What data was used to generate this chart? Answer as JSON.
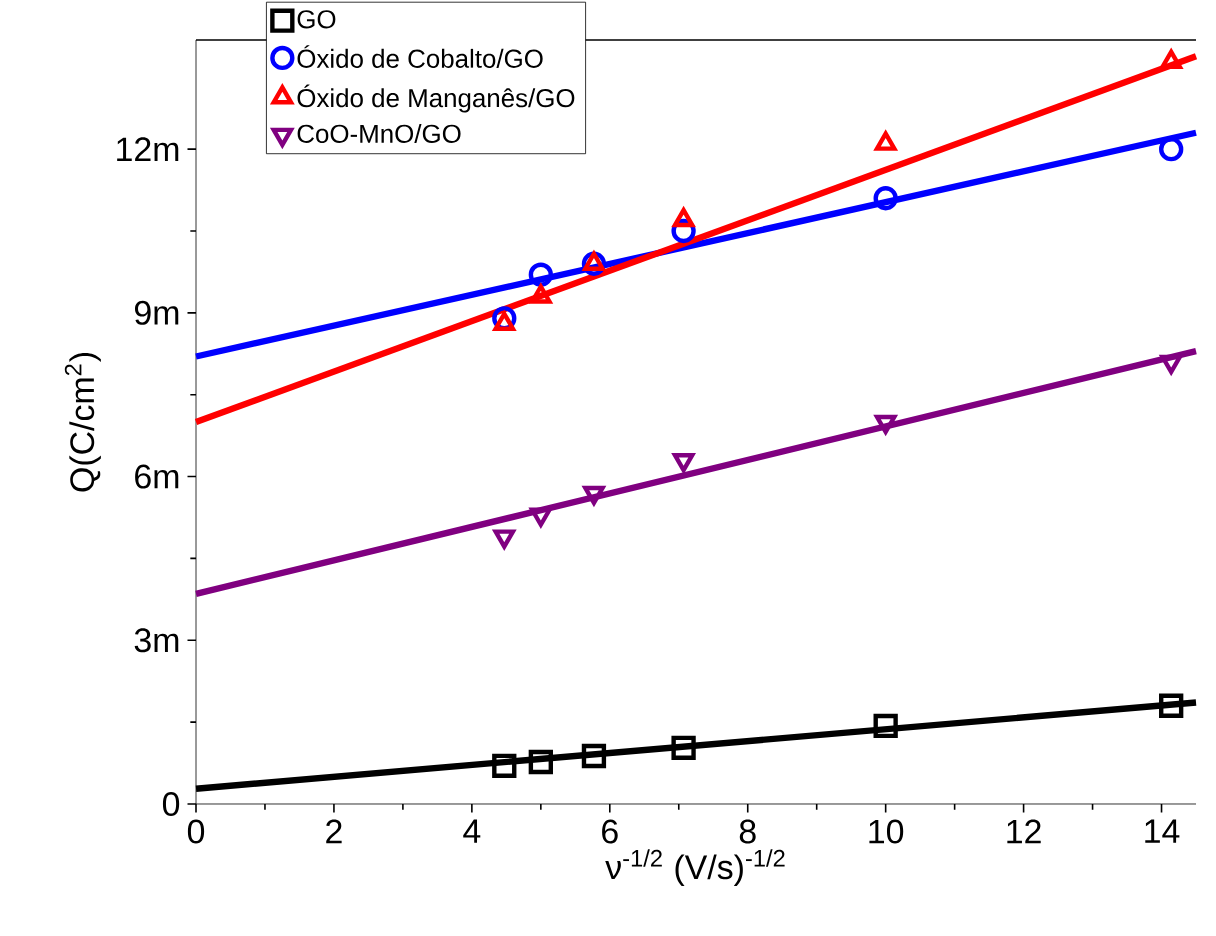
{
  "chart_data": {
    "type": "scatter",
    "xlabel": "ν$^{-1/2}$ (V/s)$^{-1/2}$",
    "ylabel": "Q(C/cm$^{2}$)",
    "xlim": [
      0,
      14.5
    ],
    "ylim": [
      0,
      14
    ],
    "xticks": [
      0,
      2,
      4,
      6,
      8,
      10,
      12,
      14
    ],
    "yticks": [
      {
        "value": 0,
        "label": "0"
      },
      {
        "value": 3,
        "label": "3m"
      },
      {
        "value": 6,
        "label": "6m"
      },
      {
        "value": 9,
        "label": "9m"
      },
      {
        "value": 12,
        "label": "12m"
      }
    ],
    "legend": "top left",
    "grid": false,
    "series": [
      {
        "name": "GO",
        "marker": "square",
        "color": "#000000",
        "x": [
          4.47,
          5,
          5.77,
          7.07,
          10,
          14.14
        ],
        "values": [
          0.7,
          0.77,
          0.88,
          1.03,
          1.43,
          1.8
        ]
      },
      {
        "name": "Óxido de Cobalto/GO",
        "marker": "circle",
        "color": "#0000ff",
        "x": [
          4.47,
          5,
          5.77,
          7.07,
          10,
          14.14
        ],
        "values": [
          8.9,
          9.7,
          9.9,
          10.5,
          11.1,
          12.0
        ]
      },
      {
        "name": "Óxido de Manganês/GO",
        "marker": "triangle",
        "color": "#ff0000",
        "x": [
          4.47,
          5,
          5.77,
          7.07,
          10,
          14.14
        ],
        "values": [
          8.8,
          9.3,
          9.9,
          10.7,
          12.1,
          13.6
        ]
      },
      {
        "name": "CoO-MnO/GO",
        "marker": "triangle down",
        "color": "#800080",
        "x": [
          4.47,
          5,
          5.77,
          7.07,
          10,
          14.14
        ],
        "values": [
          4.9,
          5.3,
          5.7,
          6.3,
          7.0,
          8.1
        ]
      },
      {
        "type": "line",
        "color": "#000000",
        "x": [
          0,
          14.5
        ],
        "values": [
          0.28,
          1.86
        ]
      },
      {
        "type": "line",
        "color": "#0000ff",
        "x": [
          0,
          14.5
        ],
        "values": [
          8.2,
          12.3
        ]
      },
      {
        "type": "line",
        "color": "#ff0000",
        "x": [
          0,
          14.5
        ],
        "values": [
          7.0,
          13.7
        ]
      },
      {
        "type": "line",
        "color": "#800080",
        "x": [
          0,
          14.5
        ],
        "values": [
          3.85,
          8.3
        ]
      }
    ]
  }
}
